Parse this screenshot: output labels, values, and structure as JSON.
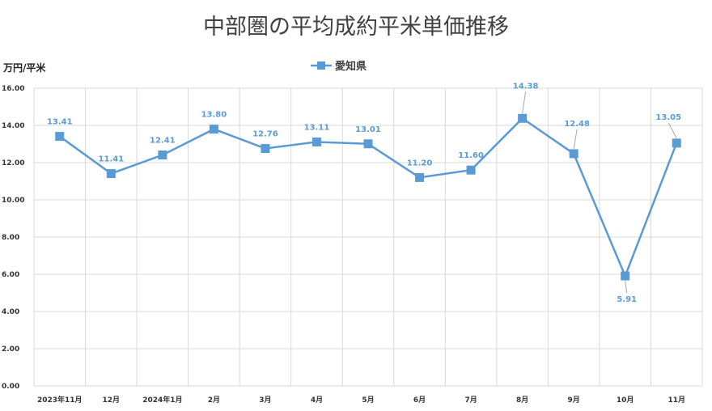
{
  "chart_data": {
    "type": "line",
    "title": "中部圏の平均成約平米単価推移",
    "ylabel": "万円/平米",
    "xlabel": "",
    "categories": [
      "2023年11月",
      "12月",
      "2024年1月",
      "2月",
      "3月",
      "4月",
      "5月",
      "6月",
      "7月",
      "8月",
      "9月",
      "10月",
      "11月"
    ],
    "series": [
      {
        "name": "愛知県",
        "values": [
          13.41,
          11.41,
          12.41,
          13.8,
          12.76,
          13.11,
          13.01,
          11.2,
          11.6,
          14.38,
          12.48,
          5.91,
          13.05
        ],
        "labels": [
          "13.41",
          "11.41",
          "12.41",
          "13.80",
          "12.76",
          "13.11",
          "13.01",
          "11.20",
          "11.60",
          "14.38",
          "12.48",
          "5.91",
          "13.05"
        ]
      }
    ],
    "ylim": [
      0,
      16
    ],
    "yticks": [
      "0.00",
      "2.00",
      "4.00",
      "6.00",
      "8.00",
      "10.00",
      "12.00",
      "14.00",
      "16.00"
    ],
    "grid": true,
    "legend_position": "top-center",
    "series_color": "#5b9bd5",
    "grid_color": "#d9d9d9"
  }
}
